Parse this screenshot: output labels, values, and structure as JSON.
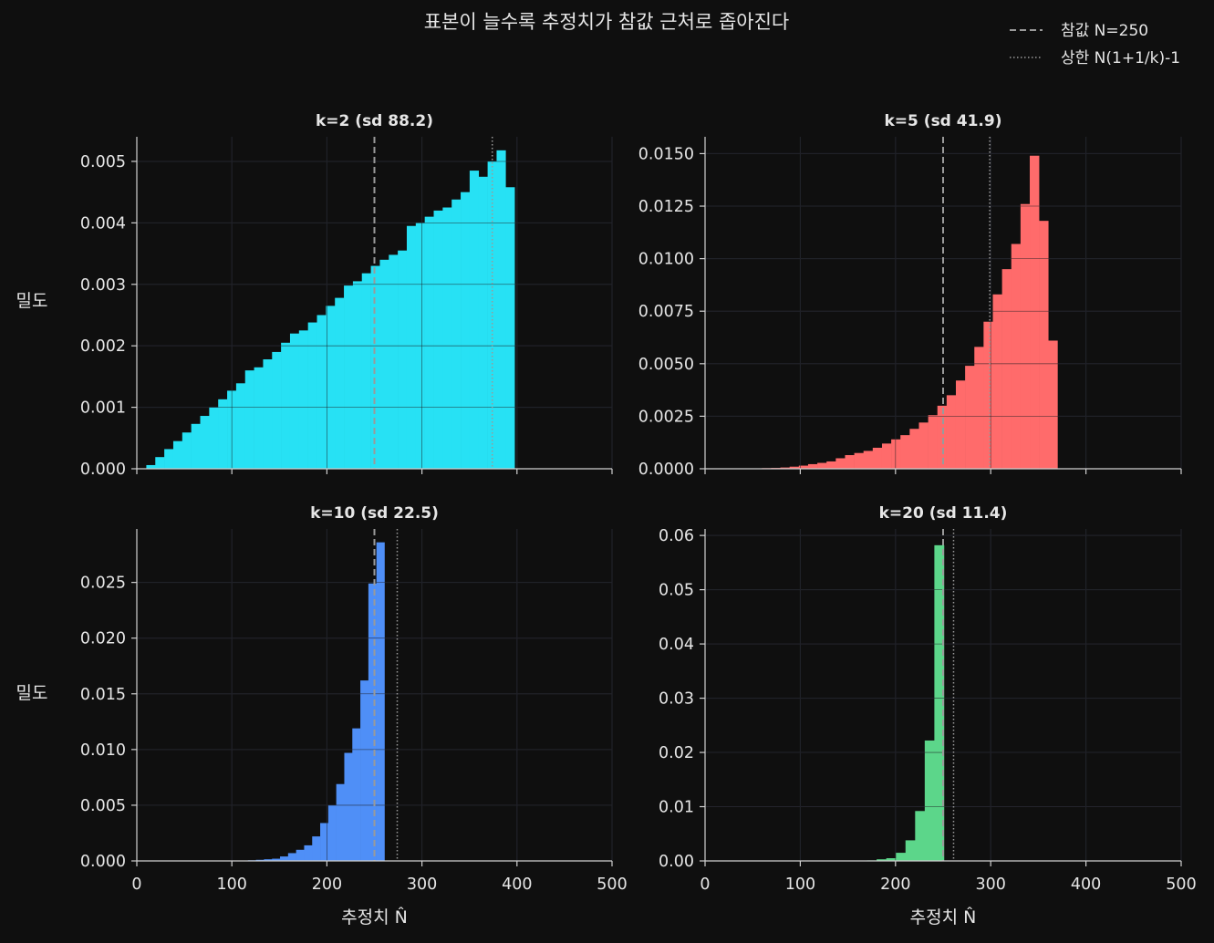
{
  "title": "표본이 늘수록 추정치가 참값 근처로 좁아진다",
  "legend": {
    "true_label": "참값 N=250",
    "upper_label": "상한 N(1+1/k)-1"
  },
  "colors": {
    "background": "#0f0f0f",
    "grid": "#2a2c36",
    "axis": "#d0d0d0",
    "true_line": "#9a9a9a",
    "upper_line": "#9a9a9a"
  },
  "chart_data": [
    {
      "type": "bar",
      "title": "k=2 (sd 88.2)",
      "xlabel": "",
      "ylabel": "밀도",
      "xlim": [
        0,
        500
      ],
      "ylim": [
        0,
        0.0054
      ],
      "xticks": [
        "",
        "",
        "",
        "",
        "",
        ""
      ],
      "xtick_values": [
        0,
        100,
        200,
        300,
        400,
        500
      ],
      "yticks": [
        "0.000",
        "0.001",
        "0.002",
        "0.003",
        "0.004",
        "0.005"
      ],
      "ytick_values": [
        0,
        0.001,
        0.002,
        0.003,
        0.004,
        0.005
      ],
      "true_value": 250,
      "upper_value": 374,
      "color": "#27e1f4",
      "bin_start": 10,
      "bin_width": 9.45,
      "values": [
        6e-05,
        0.00019,
        0.00032,
        0.00045,
        0.00059,
        0.00073,
        0.00086,
        0.001,
        0.00113,
        0.00127,
        0.00139,
        0.0016,
        0.00165,
        0.00178,
        0.0019,
        0.00205,
        0.0022,
        0.00225,
        0.00238,
        0.0025,
        0.00265,
        0.00278,
        0.00298,
        0.00305,
        0.00318,
        0.0033,
        0.0034,
        0.00348,
        0.00355,
        0.00395,
        0.004,
        0.0041,
        0.0042,
        0.00425,
        0.00438,
        0.0045,
        0.00485,
        0.00475,
        0.005,
        0.00518,
        0.00458
      ]
    },
    {
      "type": "bar",
      "title": "k=5 (sd 41.9)",
      "xlabel": "",
      "ylabel": "",
      "xlim": [
        0,
        500
      ],
      "ylim": [
        0,
        0.0158
      ],
      "xticks": [
        "",
        "",
        "",
        "",
        "",
        ""
      ],
      "xtick_values": [
        0,
        100,
        200,
        300,
        400,
        500
      ],
      "yticks": [
        "0.0000",
        "0.0025",
        "0.0050",
        "0.0075",
        "0.0100",
        "0.0125",
        "0.0150"
      ],
      "ytick_values": [
        0,
        0.0025,
        0.005,
        0.0075,
        0.01,
        0.0125,
        0.015
      ],
      "true_value": 250,
      "upper_value": 299,
      "color": "#ff6b6b",
      "bin_start": 50,
      "bin_width": 9.7,
      "values": [
        2e-05,
        3e-05,
        4e-05,
        6e-05,
        0.0001,
        0.00015,
        0.00022,
        0.00028,
        0.00035,
        0.0005,
        0.00065,
        0.00075,
        0.00085,
        0.001,
        0.0012,
        0.0014,
        0.0016,
        0.0019,
        0.0022,
        0.00255,
        0.003,
        0.0035,
        0.0042,
        0.0049,
        0.0058,
        0.007,
        0.0083,
        0.0095,
        0.0107,
        0.0126,
        0.0149,
        0.0118,
        0.0061
      ]
    },
    {
      "type": "bar",
      "title": "k=10 (sd 22.5)",
      "xlabel": "추정치 N̂",
      "ylabel": "밀도",
      "xlim": [
        0,
        500
      ],
      "ylim": [
        0,
        0.0298
      ],
      "xticks": [
        "0",
        "100",
        "200",
        "300",
        "400",
        "500"
      ],
      "xtick_values": [
        0,
        100,
        200,
        300,
        400,
        500
      ],
      "yticks": [
        "0.000",
        "0.005",
        "0.010",
        "0.015",
        "0.020",
        "0.025"
      ],
      "ytick_values": [
        0,
        0.005,
        0.01,
        0.015,
        0.02,
        0.025
      ],
      "true_value": 250,
      "upper_value": 274,
      "color": "#4f8ff7",
      "bin_start": 100,
      "bin_width": 8.45,
      "values": [
        2e-05,
        4e-05,
        6e-05,
        0.0001,
        0.00015,
        0.0002,
        0.0004,
        0.0007,
        0.001,
        0.0014,
        0.0022,
        0.0034,
        0.005,
        0.0069,
        0.0097,
        0.0119,
        0.0162,
        0.0249,
        0.0286
      ]
    },
    {
      "type": "bar",
      "title": "k=20 (sd 11.4)",
      "xlabel": "추정치 N̂",
      "ylabel": "",
      "xlim": [
        0,
        500
      ],
      "ylim": [
        0,
        0.0612
      ],
      "xticks": [
        "0",
        "100",
        "200",
        "300",
        "400",
        "500"
      ],
      "xtick_values": [
        0,
        100,
        200,
        300,
        400,
        500
      ],
      "yticks": [
        "0.00",
        "0.01",
        "0.02",
        "0.03",
        "0.04",
        "0.05",
        "0.06"
      ],
      "ytick_values": [
        0,
        0.01,
        0.02,
        0.03,
        0.04,
        0.05,
        0.06
      ],
      "true_value": 250,
      "upper_value": 261,
      "color": "#5cd68a",
      "bin_start": 160,
      "bin_width": 10.1,
      "values": [
        5e-05,
        0.0001,
        0.0003,
        0.0005,
        0.0015,
        0.0038,
        0.0092,
        0.0222,
        0.0582,
        0.0
      ]
    }
  ]
}
